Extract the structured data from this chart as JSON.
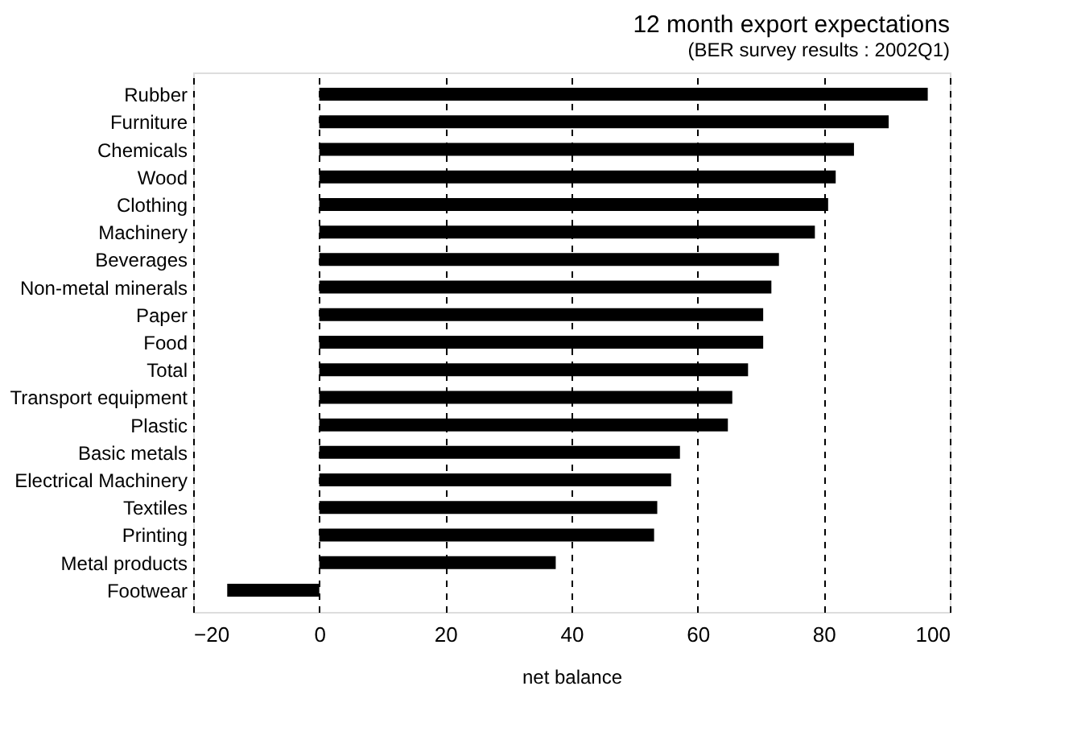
{
  "chart_data": {
    "type": "bar",
    "orientation": "horizontal",
    "title": "12 month export expectations",
    "subtitle": "(BER survey results : 2002Q1)",
    "xlabel": "net balance",
    "categories": [
      "Rubber",
      "Furniture",
      "Chemicals",
      "Wood",
      "Clothing",
      "Machinery",
      "Beverages",
      "Non-metal minerals",
      "Paper",
      "Food",
      "Total",
      "Transport equipment",
      "Plastic",
      "Basic metals",
      "Electrical Machinery",
      "Textiles",
      "Printing",
      "Metal products",
      "Footwear"
    ],
    "values": [
      96.5,
      90.3,
      84.8,
      81.9,
      80.7,
      78.6,
      72.9,
      71.7,
      70.4,
      70.4,
      68.0,
      65.5,
      64.8,
      57.2,
      55.8,
      53.6,
      53.1,
      37.5,
      -14.6
    ],
    "color": "#000000",
    "xlim": [
      -20,
      100
    ],
    "xticks": [
      -20,
      0,
      20,
      40,
      60,
      80,
      100
    ],
    "grid": "x"
  }
}
